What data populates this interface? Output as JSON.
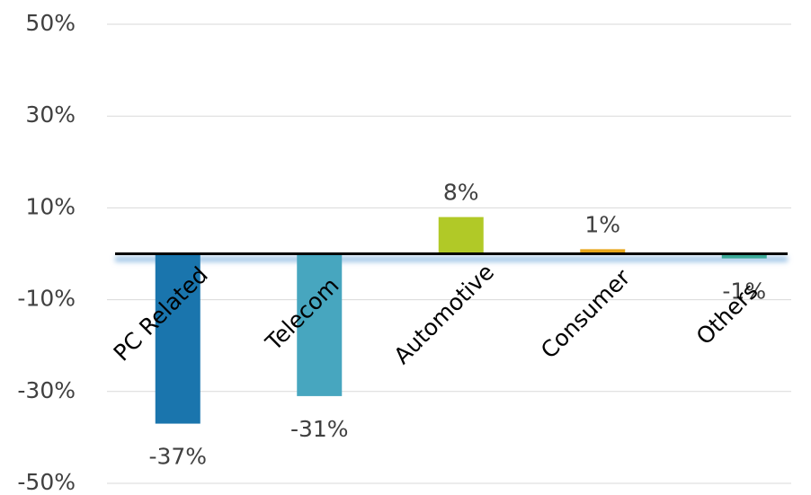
{
  "chart_data": {
    "type": "bar",
    "categories": [
      "PC Related",
      "Telecom",
      "Automotive",
      "Consumer",
      "Others"
    ],
    "values": [
      -37,
      -31,
      8,
      1,
      -1
    ],
    "value_labels": [
      "-37%",
      "-31%",
      "8%",
      "1%",
      "-1%"
    ],
    "colors": [
      "#1a75ad",
      "#47a6bf",
      "#b1c927",
      "#e8a619",
      "#3aa897"
    ],
    "ylim": [
      -50,
      50
    ],
    "yticks": [
      {
        "value": -50,
        "label": "-50%"
      },
      {
        "value": -30,
        "label": "-30%"
      },
      {
        "value": -10,
        "label": "-10%"
      },
      {
        "value": 10,
        "label": "10%"
      },
      {
        "value": 30,
        "label": "30%"
      },
      {
        "value": 50,
        "label": "50%"
      }
    ],
    "grid": true
  }
}
